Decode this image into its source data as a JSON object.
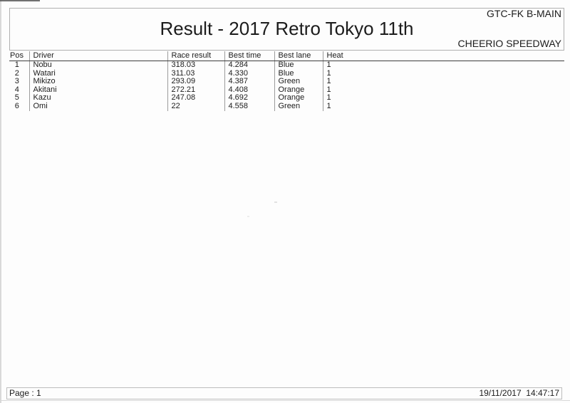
{
  "header": {
    "event_class": "GTC-FK B-MAIN",
    "title": "Result - 2017 Retro Tokyo 11th",
    "venue": "CHEERIO SPEEDWAY"
  },
  "table": {
    "columns": [
      "Pos",
      "Driver",
      "Race result",
      "Best time",
      "Best lane",
      "Heat"
    ],
    "rows": [
      [
        "1",
        "Nobu",
        "318.03",
        "4.284",
        "Blue",
        "1"
      ],
      [
        "2",
        "Watari",
        "311.03",
        "4.330",
        "Blue",
        "1"
      ],
      [
        "3",
        "Mikizo",
        "293.09",
        "4.387",
        "Green",
        "1"
      ],
      [
        "4",
        "Akitani",
        "272.21",
        "4.408",
        "Orange",
        "1"
      ],
      [
        "5",
        "Kazu",
        "247.08",
        "4.692",
        "Orange",
        "1"
      ],
      [
        "6",
        "Omi",
        "22",
        "4.558",
        "Green",
        "1"
      ]
    ]
  },
  "footer": {
    "page_label": "Page : 1",
    "datetime": "19/11/2017  14:47:17"
  }
}
